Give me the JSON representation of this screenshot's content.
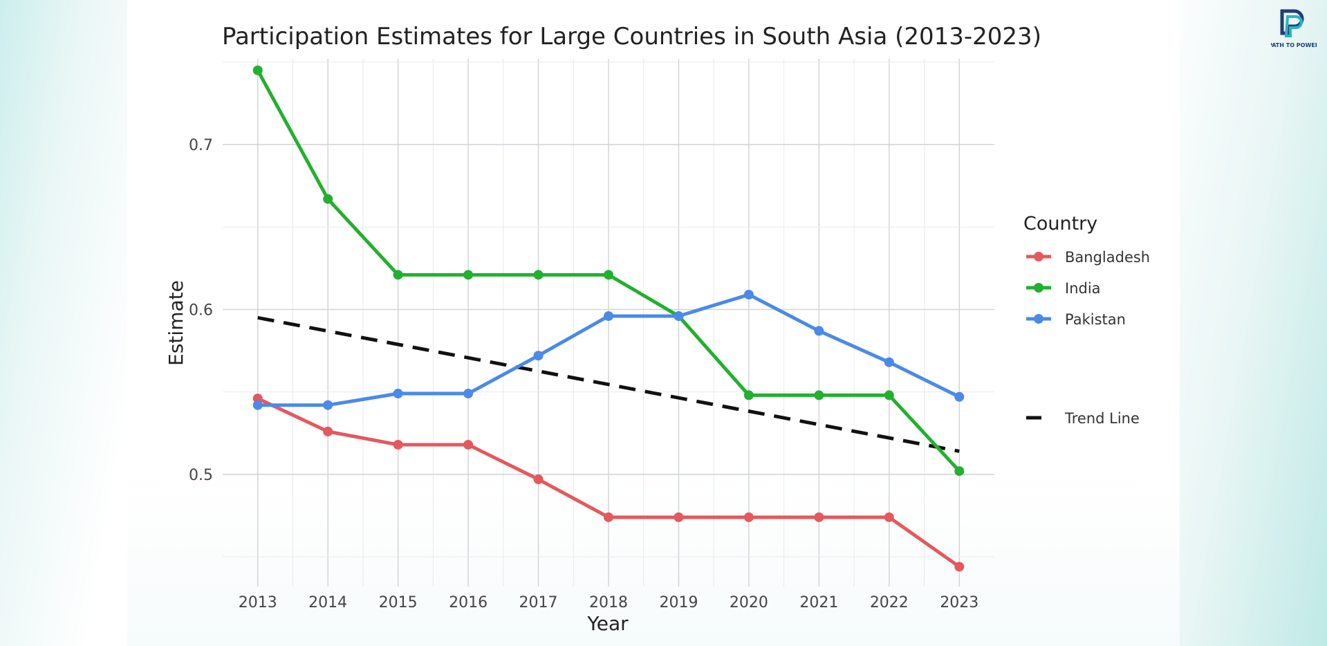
{
  "logo": {
    "text": "PATH TO POWER",
    "color": "#1f3f75",
    "accent": "#2bb3c0"
  },
  "chart_data": {
    "type": "line",
    "title": "Participation Estimates for Large Countries in South Asia (2013-2023)",
    "xlabel": "Year",
    "ylabel": "Estimate",
    "x": [
      2013,
      2014,
      2015,
      2016,
      2017,
      2018,
      2019,
      2020,
      2021,
      2022,
      2023
    ],
    "xlim": [
      2012.5,
      2023.5
    ],
    "ylim": [
      0.432,
      0.752
    ],
    "yticks": [
      0.5,
      0.6,
      0.7
    ],
    "ytick_labels": [
      "0.5",
      "0.6",
      "0.7"
    ],
    "grid": true,
    "legend_title": "Country",
    "legend_position": "right",
    "series": [
      {
        "name": "Bangladesh",
        "color": "#e5585e",
        "values": [
          0.546,
          0.526,
          0.518,
          0.518,
          0.497,
          0.474,
          0.474,
          0.474,
          0.474,
          0.474,
          0.444
        ]
      },
      {
        "name": "India",
        "color": "#22b02f",
        "values": [
          0.745,
          0.667,
          0.621,
          0.621,
          0.621,
          0.621,
          0.596,
          0.548,
          0.548,
          0.548,
          0.502
        ]
      },
      {
        "name": "Pakistan",
        "color": "#4a8ae8",
        "values": [
          0.542,
          0.542,
          0.549,
          0.549,
          0.572,
          0.596,
          0.596,
          0.609,
          0.587,
          0.568,
          0.547
        ]
      }
    ],
    "trend_line": {
      "name": "Trend Line",
      "color": "#111111",
      "style": "dashed",
      "x": [
        2013,
        2023
      ],
      "values": [
        0.595,
        0.514
      ]
    }
  }
}
